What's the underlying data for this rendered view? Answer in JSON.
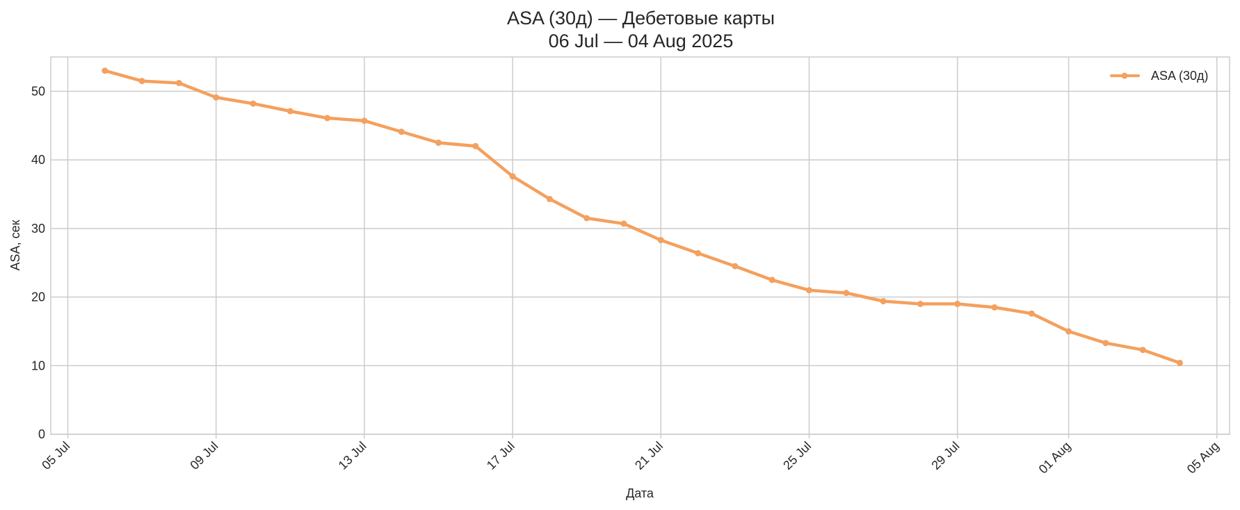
{
  "chart_data": {
    "type": "line",
    "title": "ASA (30д) — Дебетовые карты",
    "subtitle": "06 Jul — 04 Aug 2025",
    "xlabel": "Дата",
    "ylabel": "ASA, сек",
    "xlim": [
      "2025-07-05",
      "2025-08-05"
    ],
    "ylim": [
      0,
      55
    ],
    "grid": true,
    "legend_position": "top-right",
    "x_ticks": [
      {
        "date": "2025-07-05",
        "label": "05 Jul"
      },
      {
        "date": "2025-07-09",
        "label": "09 Jul"
      },
      {
        "date": "2025-07-13",
        "label": "13 Jul"
      },
      {
        "date": "2025-07-17",
        "label": "17 Jul"
      },
      {
        "date": "2025-07-21",
        "label": "21 Jul"
      },
      {
        "date": "2025-07-25",
        "label": "25 Jul"
      },
      {
        "date": "2025-07-29",
        "label": "29 Jul"
      },
      {
        "date": "2025-08-01",
        "label": "01 Aug"
      },
      {
        "date": "2025-08-05",
        "label": "05 Aug"
      }
    ],
    "y_ticks": [
      0,
      10,
      20,
      30,
      40,
      50
    ],
    "series": [
      {
        "name": "ASA (30д)",
        "color": "#F4A05E",
        "points": [
          {
            "x": "2025-07-06",
            "y": 53.0
          },
          {
            "x": "2025-07-07",
            "y": 51.5
          },
          {
            "x": "2025-07-08",
            "y": 51.2
          },
          {
            "x": "2025-07-09",
            "y": 49.1
          },
          {
            "x": "2025-07-10",
            "y": 48.2
          },
          {
            "x": "2025-07-11",
            "y": 47.1
          },
          {
            "x": "2025-07-12",
            "y": 46.1
          },
          {
            "x": "2025-07-13",
            "y": 45.7
          },
          {
            "x": "2025-07-14",
            "y": 44.1
          },
          {
            "x": "2025-07-15",
            "y": 42.5
          },
          {
            "x": "2025-07-16",
            "y": 42.0
          },
          {
            "x": "2025-07-17",
            "y": 37.6
          },
          {
            "x": "2025-07-18",
            "y": 34.3
          },
          {
            "x": "2025-07-19",
            "y": 31.5
          },
          {
            "x": "2025-07-20",
            "y": 30.7
          },
          {
            "x": "2025-07-21",
            "y": 28.3
          },
          {
            "x": "2025-07-22",
            "y": 26.4
          },
          {
            "x": "2025-07-23",
            "y": 24.5
          },
          {
            "x": "2025-07-24",
            "y": 22.5
          },
          {
            "x": "2025-07-25",
            "y": 21.0
          },
          {
            "x": "2025-07-26",
            "y": 20.6
          },
          {
            "x": "2025-07-27",
            "y": 19.4
          },
          {
            "x": "2025-07-28",
            "y": 19.0
          },
          {
            "x": "2025-07-29",
            "y": 19.0
          },
          {
            "x": "2025-07-30",
            "y": 18.5
          },
          {
            "x": "2025-07-31",
            "y": 17.6
          },
          {
            "x": "2025-08-01",
            "y": 15.0
          },
          {
            "x": "2025-08-02",
            "y": 13.3
          },
          {
            "x": "2025-08-03",
            "y": 12.3
          },
          {
            "x": "2025-08-04",
            "y": 10.4
          }
        ]
      }
    ]
  }
}
